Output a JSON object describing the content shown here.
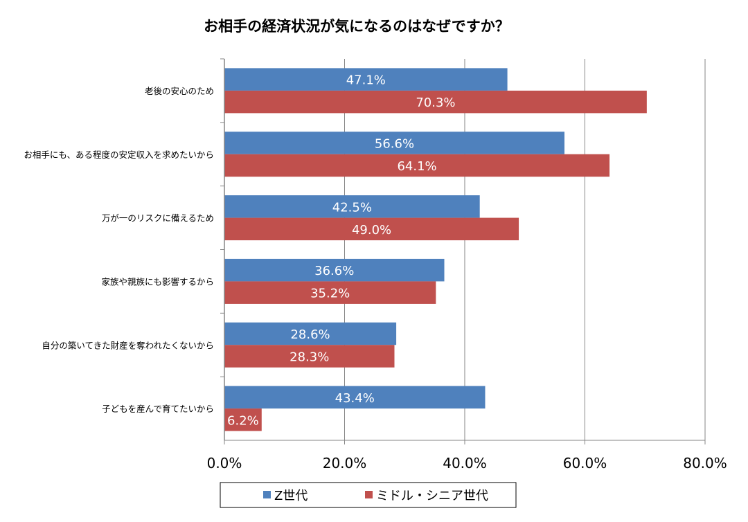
{
  "chart_data": {
    "type": "bar",
    "orientation": "horizontal",
    "title": "お相手の経済状況が気になるのはなぜですか？",
    "categories": [
      "老後の安心のため",
      "お相手にも、ある程度の安定収入を求めたいから",
      "万が一のリスクに備えるため",
      "家族や親族にも影響するから",
      "自分の築いてきた財産を奪われたくないから",
      "子どもを産んで育てたいから"
    ],
    "series": [
      {
        "name": "Z世代",
        "color": "#4F81BD",
        "values": [
          47.1,
          56.6,
          42.5,
          36.6,
          28.6,
          43.4
        ],
        "labels": [
          "47.1%",
          "56.6%",
          "42.5%",
          "36.6%",
          "28.6%",
          "43.4%"
        ]
      },
      {
        "name": "ミドル・シニア世代",
        "color": "#C0504D",
        "values": [
          70.3,
          64.1,
          49.0,
          35.2,
          28.3,
          6.2
        ],
        "labels": [
          "70.3%",
          "64.1%",
          "49.0%",
          "35.2%",
          "28.3%",
          "6.2%"
        ]
      }
    ],
    "xlim": [
      0,
      80
    ],
    "xticks": [
      "0.0%",
      "20.0%",
      "40.0%",
      "60.0%",
      "80.0%"
    ],
    "grid": true,
    "legend": "bottom"
  }
}
